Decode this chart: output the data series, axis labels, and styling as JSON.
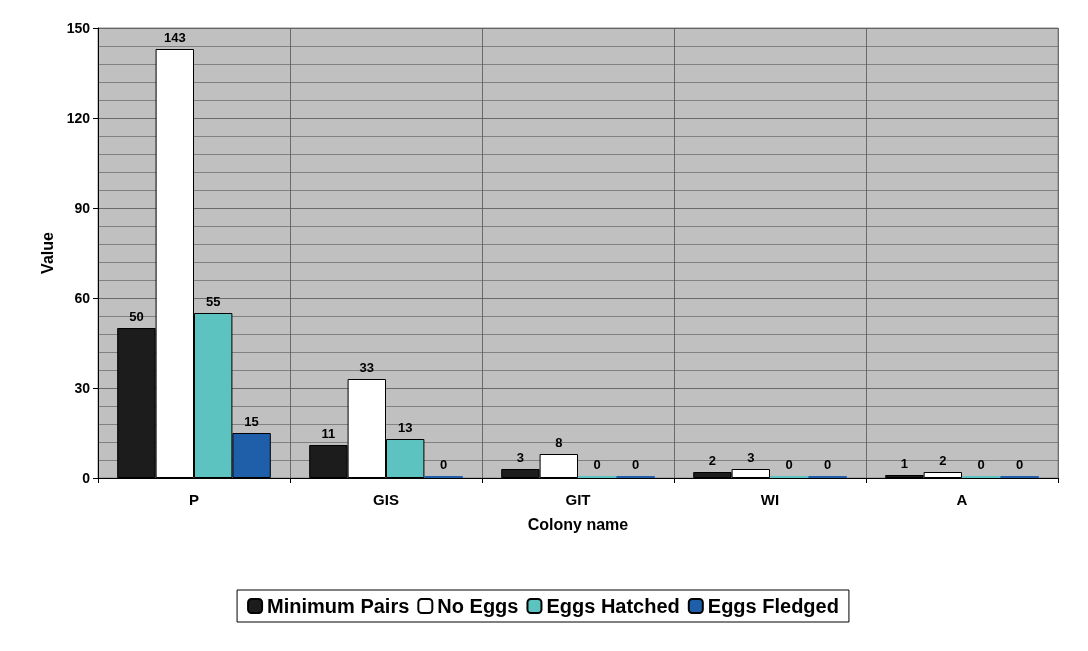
{
  "chart_data": {
    "type": "bar",
    "xlabel": "Colony name",
    "ylabel": "Value",
    "categories": [
      "P",
      "GIS",
      "GIT",
      "WI",
      "A"
    ],
    "series": [
      {
        "name": "Minimum Pairs",
        "color": "#1c1c1c",
        "values": [
          50,
          11,
          3,
          2,
          1
        ]
      },
      {
        "name": "No Eggs",
        "color": "#ffffff",
        "values": [
          143,
          33,
          8,
          3,
          2
        ]
      },
      {
        "name": "Eggs Hatched",
        "color": "#5cc3c0",
        "values": [
          55,
          13,
          0,
          0,
          0
        ]
      },
      {
        "name": "Eggs Fledged",
        "color": "#1f5ea8",
        "values": [
          15,
          0,
          0,
          0,
          0
        ]
      }
    ],
    "ylim": [
      0,
      150
    ],
    "yticks": [
      0,
      30,
      60,
      90,
      120,
      150
    ],
    "grid": true,
    "legend": "bottom",
    "data_labels": true
  }
}
